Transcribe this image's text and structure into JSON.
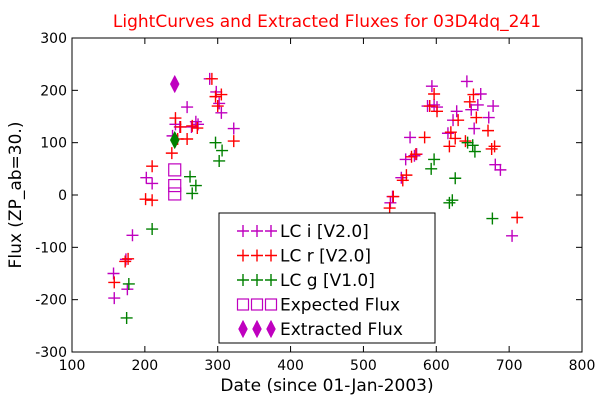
{
  "chart_data": {
    "type": "scatter",
    "title": "LightCurves and Extracted Fluxes for 03D4dq_241",
    "xlabel": "Date (since 01-Jan-2003)",
    "ylabel": "Flux (ZP_ab=30.)",
    "xlim": [
      100,
      800
    ],
    "ylim": [
      -300,
      300
    ],
    "xticks": [
      100,
      200,
      300,
      400,
      500,
      600,
      700,
      800
    ],
    "yticks": [
      -300,
      -200,
      -100,
      0,
      100,
      200,
      300
    ],
    "grid": false,
    "legend_position": "bottom-center",
    "series": [
      {
        "name": "LC i [V2.0]",
        "marker": "plus",
        "color": "#bf00bf",
        "points": [
          [
            157,
            -150
          ],
          [
            158,
            -197
          ],
          [
            174,
            -123
          ],
          [
            176,
            -180
          ],
          [
            183,
            -77
          ],
          [
            202,
            33
          ],
          [
            210,
            22
          ],
          [
            238,
            113
          ],
          [
            242,
            135
          ],
          [
            248,
            130
          ],
          [
            258,
            168
          ],
          [
            264,
            130
          ],
          [
            270,
            140
          ],
          [
            273,
            135
          ],
          [
            289,
            222
          ],
          [
            298,
            197
          ],
          [
            302,
            175
          ],
          [
            305,
            157
          ],
          [
            322,
            127
          ],
          [
            537,
            -15
          ],
          [
            540,
            -3
          ],
          [
            552,
            33
          ],
          [
            558,
            68
          ],
          [
            564,
            110
          ],
          [
            570,
            75
          ],
          [
            573,
            78
          ],
          [
            588,
            170
          ],
          [
            594,
            208
          ],
          [
            597,
            172
          ],
          [
            601,
            168
          ],
          [
            616,
            118
          ],
          [
            623,
            143
          ],
          [
            628,
            160
          ],
          [
            642,
            217
          ],
          [
            648,
            163
          ],
          [
            652,
            127
          ],
          [
            657,
            172
          ],
          [
            661,
            193
          ],
          [
            672,
            148
          ],
          [
            678,
            170
          ],
          [
            681,
            58
          ],
          [
            688,
            48
          ],
          [
            704,
            -78
          ]
        ]
      },
      {
        "name": "LC r [V2.0]",
        "marker": "plus",
        "color": "#ff0000",
        "points": [
          [
            158,
            -167
          ],
          [
            173,
            -127
          ],
          [
            177,
            -122
          ],
          [
            201,
            -8
          ],
          [
            210,
            -10
          ],
          [
            210,
            55
          ],
          [
            237,
            80
          ],
          [
            242,
            147
          ],
          [
            245,
            107
          ],
          [
            249,
            130
          ],
          [
            258,
            107
          ],
          [
            265,
            132
          ],
          [
            272,
            128
          ],
          [
            292,
            222
          ],
          [
            297,
            188
          ],
          [
            300,
            170
          ],
          [
            305,
            192
          ],
          [
            322,
            103
          ],
          [
            536,
            -25
          ],
          [
            541,
            -3
          ],
          [
            554,
            28
          ],
          [
            559,
            38
          ],
          [
            566,
            73
          ],
          [
            572,
            78
          ],
          [
            584,
            110
          ],
          [
            591,
            170
          ],
          [
            597,
            193
          ],
          [
            601,
            160
          ],
          [
            618,
            93
          ],
          [
            620,
            120
          ],
          [
            626,
            108
          ],
          [
            630,
            143
          ],
          [
            640,
            103
          ],
          [
            646,
            178
          ],
          [
            651,
            192
          ],
          [
            655,
            148
          ],
          [
            671,
            123
          ],
          [
            676,
            88
          ],
          [
            680,
            93
          ],
          [
            711,
            -43
          ]
        ]
      },
      {
        "name": "LC g [V1.0]",
        "marker": "plus",
        "color": "#008000",
        "points": [
          [
            178,
            -170
          ],
          [
            175,
            -235
          ],
          [
            210,
            -65
          ],
          [
            262,
            35
          ],
          [
            265,
            3
          ],
          [
            270,
            18
          ],
          [
            297,
            100
          ],
          [
            302,
            65
          ],
          [
            306,
            85
          ],
          [
            593,
            50
          ],
          [
            597,
            68
          ],
          [
            618,
            -15
          ],
          [
            622,
            -10
          ],
          [
            626,
            32
          ],
          [
            643,
            100
          ],
          [
            650,
            95
          ],
          [
            653,
            83
          ],
          [
            677,
            -45
          ]
        ]
      },
      {
        "name": "Expected Flux",
        "marker": "square-open",
        "color": "#bf00bf",
        "points": [
          [
            241,
            48
          ],
          [
            241,
            18
          ],
          [
            241,
            2
          ]
        ]
      },
      {
        "name": "Extracted Flux",
        "marker": "diamond-filled",
        "colors": [
          "#bf00bf",
          "#008000"
        ],
        "points": [
          [
            241,
            212
          ],
          [
            241,
            105
          ]
        ]
      }
    ]
  }
}
